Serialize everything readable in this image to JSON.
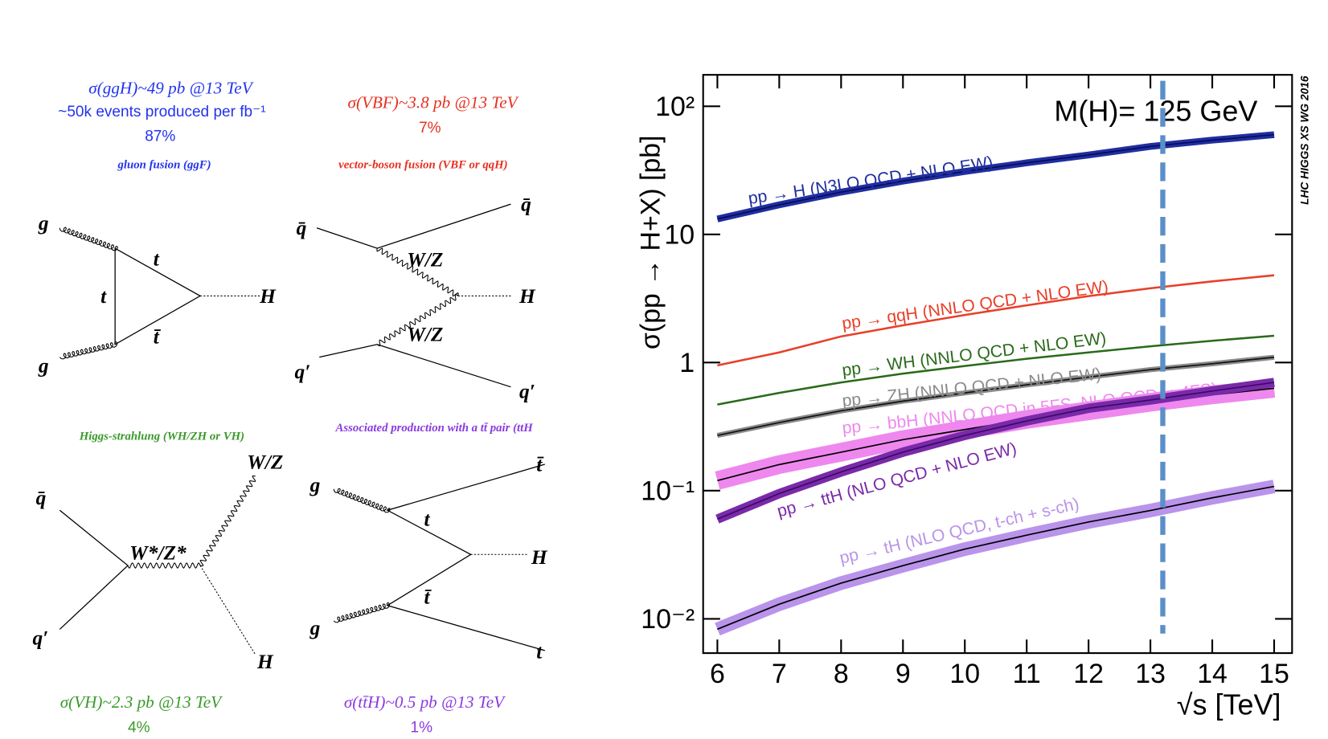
{
  "diagrams": [
    {
      "cross_section": "σ(ggH)~49 pb @13 TeV",
      "note": "~50k events produced per fb⁻¹",
      "fraction": "87%",
      "process": "gluon fusion (ggF)",
      "labels": [
        "g",
        "g",
        "t",
        "t",
        "t̄",
        "H"
      ]
    },
    {
      "cross_section": "σ(VBF)~3.8 pb @13 TeV",
      "fraction": "7%",
      "process": "vector-boson fusion (VBF or qqH)",
      "labels": [
        "q̄",
        "q̄",
        "W/Z",
        "H",
        "W/Z",
        "q′",
        "q′"
      ]
    },
    {
      "cross_section": "σ(VH)~2.3 pb @13 TeV",
      "fraction": "4%",
      "process": "Higgs-strahlung (WH/ZH or VH)",
      "labels": [
        "q̄",
        "q′",
        "W*/Z*",
        "W/Z",
        "H"
      ]
    },
    {
      "cross_section": "σ(tt̄H)~0.5 pb @13 TeV",
      "fraction": "1%",
      "process": "Associated production with a tt̄ pair (ttH",
      "labels": [
        "g",
        "g",
        "t̄",
        "t",
        "H",
        "t̄",
        "t"
      ]
    }
  ],
  "chart_data": {
    "type": "line",
    "log_y": true,
    "annotation": "M(H)= 125 GeV",
    "side_note": "LHC HIGGS XS WG 2016",
    "y_label": "σ(pp → H+X) [pb]",
    "x_label": "√s [TeV]",
    "x": [
      6,
      7,
      8,
      9,
      10,
      11,
      12,
      13,
      14,
      15
    ],
    "xlim": [
      5.77,
      15.29
    ],
    "xticks": [
      6,
      7,
      8,
      9,
      10,
      11,
      12,
      13,
      14,
      15
    ],
    "ylim": [
      0.0054,
      176
    ],
    "yticks": [
      {
        "value": 0.01,
        "label": "10⁻²"
      },
      {
        "value": 0.1,
        "label": "10⁻¹"
      },
      1,
      10,
      {
        "value": 100,
        "label": "10²"
      }
    ],
    "reference_x": 13.2,
    "reference_color": "#5b8fc9",
    "series": [
      {
        "name": "pp → H (N3LO QCD + NLO EW)",
        "color": "#0a0a5e",
        "band_color": "#1f2f9f",
        "values": [
          13.2,
          17.0,
          21.4,
          26.1,
          31.0,
          36.2,
          41.7,
          48.6,
          54.4,
          60
        ]
      },
      {
        "name": "pp → qqH (NNLO QCD + NLO EW)",
        "color": "#e8402a",
        "values": [
          0.95,
          1.2,
          1.6,
          1.95,
          2.35,
          2.8,
          3.3,
          3.8,
          4.3,
          4.8
        ]
      },
      {
        "name": "pp → WH (NNLO QCD + NLO EW)",
        "color": "#2a6a1a",
        "values": [
          0.47,
          0.58,
          0.7,
          0.82,
          0.94,
          1.07,
          1.2,
          1.34,
          1.48,
          1.62
        ]
      },
      {
        "name": "pp → ZH (NNLO QCD + NLO EW)",
        "color": "#111111",
        "band_color": "#8a8a8a",
        "values": [
          0.27,
          0.34,
          0.42,
          0.5,
          0.58,
          0.67,
          0.77,
          0.88,
          0.98,
          1.1
        ]
      },
      {
        "name": "pp → bbH (NNLO QCD in 5FS, NLO QCD in 4FS)",
        "color": "#000000",
        "band_color": "#ee88ee",
        "values": [
          0.12,
          0.16,
          0.2,
          0.25,
          0.3,
          0.36,
          0.42,
          0.49,
          0.56,
          0.63
        ]
      },
      {
        "name": "pp → ttH (NLO QCD + NLO EW)",
        "color": "#3a0a6a",
        "band_color": "#7a2aa8",
        "values": [
          0.06,
          0.095,
          0.14,
          0.2,
          0.27,
          0.35,
          0.44,
          0.51,
          0.6,
          0.7
        ]
      },
      {
        "name": "pp → tH (NLO QCD, t-ch + s-ch)",
        "color": "#000000",
        "band_color": "#b994ea",
        "values": [
          0.0083,
          0.013,
          0.019,
          0.026,
          0.035,
          0.045,
          0.057,
          0.07,
          0.088,
          0.108
        ]
      }
    ]
  }
}
